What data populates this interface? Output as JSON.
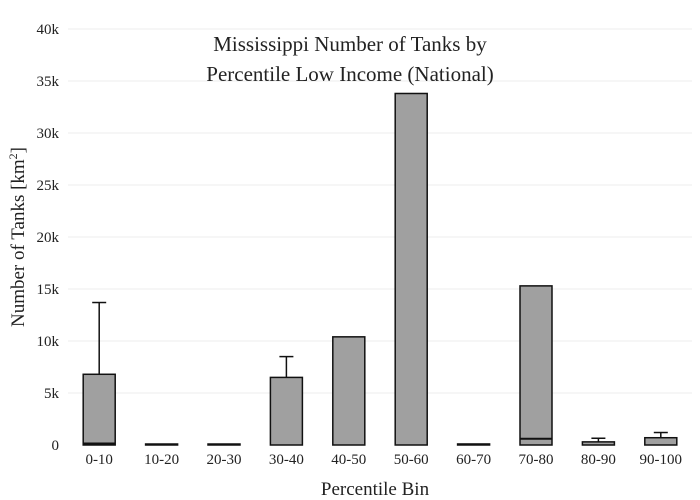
{
  "chart_data": {
    "type": "bar",
    "title_lines": [
      "Mississippi Number of Tanks by",
      "Percentile Low Income (National)"
    ],
    "xlabel": "Percentile Bin",
    "ylabel_main": "Number of Tanks  [km",
    "ylabel_sup": "2",
    "ylabel_end": "]",
    "ylim": [
      0,
      40000
    ],
    "yticks": [
      {
        "value": 0,
        "label": "0"
      },
      {
        "value": 5000,
        "label": "5k"
      },
      {
        "value": 10000,
        "label": "10k"
      },
      {
        "value": 15000,
        "label": "15k"
      },
      {
        "value": 20000,
        "label": "20k"
      },
      {
        "value": 25000,
        "label": "25k"
      },
      {
        "value": 30000,
        "label": "30k"
      },
      {
        "value": 35000,
        "label": "35k"
      },
      {
        "value": 40000,
        "label": "40k"
      }
    ],
    "grid": true,
    "categories": [
      "0-10",
      "10-20",
      "20-30",
      "30-40",
      "40-50",
      "50-60",
      "60-70",
      "70-80",
      "80-90",
      "90-100"
    ],
    "series": [
      {
        "values": [
          6800,
          0,
          0,
          6500,
          10400,
          33800,
          100,
          15300,
          300,
          700
        ],
        "inner_lines": [
          150,
          null,
          null,
          null,
          null,
          null,
          null,
          600,
          null,
          null
        ],
        "error_upper": [
          13700,
          null,
          null,
          8500,
          null,
          null,
          null,
          null,
          650,
          1200
        ]
      }
    ],
    "colors": {
      "bar_fill": "#a0a0a0",
      "bar_stroke": "#111111",
      "grid": "#ececec"
    }
  }
}
